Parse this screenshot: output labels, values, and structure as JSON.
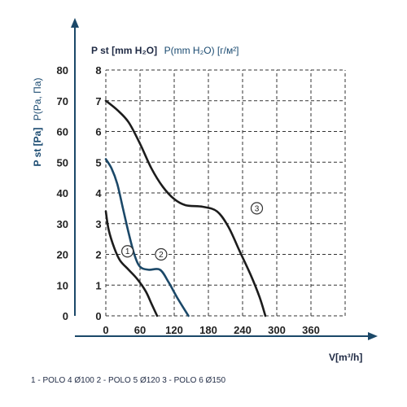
{
  "chart_data": {
    "type": "line",
    "x_axis": {
      "label": "V[m³/h]",
      "ticks": [
        "0",
        "60",
        "120",
        "180",
        "240",
        "300",
        "360"
      ],
      "range": [
        0,
        420
      ]
    },
    "y_axis_left": {
      "label_bold": "P st [Pa]",
      "label_extra": "P(Pa, Па)",
      "ticks": [
        "0",
        "10",
        "20",
        "30",
        "40",
        "50",
        "60",
        "70",
        "80"
      ],
      "range": [
        0,
        80
      ]
    },
    "y_axis_right": {
      "label_bold": "P st [mm H₂O]",
      "label_extra": "P(mm H₂O) [г/м²]",
      "ticks": [
        "0",
        "1",
        "2",
        "3",
        "4",
        "5",
        "6",
        "7",
        "8"
      ],
      "range": [
        0,
        8
      ]
    },
    "grid": true,
    "series": [
      {
        "marker": "1",
        "color": "#1c1c1c",
        "points": [
          [
            0,
            34
          ],
          [
            5,
            28
          ],
          [
            15,
            22
          ],
          [
            25,
            18
          ],
          [
            40,
            15
          ],
          [
            55,
            12
          ],
          [
            70,
            8
          ],
          [
            80,
            4
          ],
          [
            90,
            0
          ]
        ]
      },
      {
        "marker": "2",
        "color": "#1b4868",
        "points": [
          [
            0,
            51
          ],
          [
            10,
            48
          ],
          [
            20,
            43
          ],
          [
            30,
            35
          ],
          [
            40,
            27
          ],
          [
            50,
            20
          ],
          [
            60,
            16
          ],
          [
            75,
            15
          ],
          [
            95,
            15
          ],
          [
            110,
            11
          ],
          [
            125,
            6
          ],
          [
            145,
            0
          ]
        ]
      },
      {
        "marker": "3",
        "color": "#1c1c1c",
        "points": [
          [
            0,
            70
          ],
          [
            20,
            67
          ],
          [
            40,
            63
          ],
          [
            60,
            56
          ],
          [
            80,
            48
          ],
          [
            100,
            42
          ],
          [
            120,
            38
          ],
          [
            140,
            36
          ],
          [
            170,
            35.5
          ],
          [
            195,
            34
          ],
          [
            215,
            29
          ],
          [
            235,
            21
          ],
          [
            255,
            13
          ],
          [
            270,
            6
          ],
          [
            280,
            0
          ]
        ]
      }
    ],
    "marker_positions": [
      {
        "marker": "1",
        "x": 38,
        "y": 21
      },
      {
        "marker": "2",
        "x": 97,
        "y": 20
      },
      {
        "marker": "3",
        "x": 265,
        "y": 35
      }
    ],
    "legend": "1 - POLO 4 Ø100   2 - POLO 5 Ø120   3 - POLO 6 Ø150"
  }
}
